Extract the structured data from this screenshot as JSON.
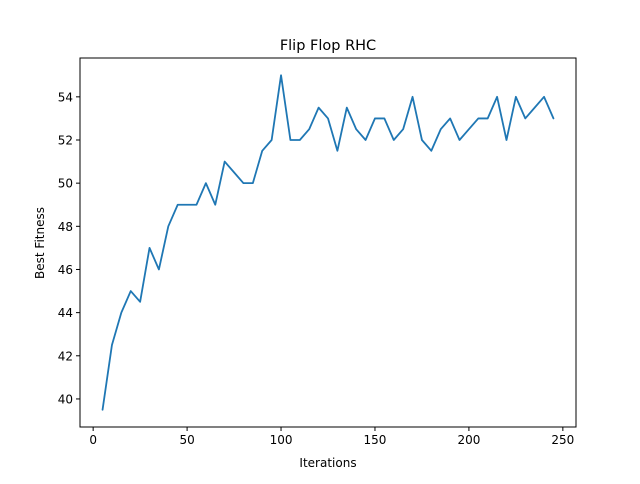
{
  "chart_data": {
    "type": "line",
    "title": "Flip Flop RHC",
    "xlabel": "Iterations",
    "ylabel": "Best Fitness",
    "xlim": [
      -7,
      257
    ],
    "ylim": [
      38.7,
      55.8
    ],
    "xticks": [
      0,
      50,
      100,
      150,
      200,
      250
    ],
    "yticks": [
      40,
      42,
      44,
      46,
      48,
      50,
      52,
      54
    ],
    "grid": false,
    "line_color": "#1f77b4",
    "series": [
      {
        "x": [
          5,
          10,
          15,
          20,
          25,
          30,
          35,
          40,
          45,
          50,
          55,
          60,
          65,
          70,
          75,
          80,
          85,
          90,
          95,
          100,
          105,
          110,
          115,
          120,
          125,
          130,
          135,
          140,
          145,
          150,
          155,
          160,
          165,
          170,
          175,
          180,
          185,
          190,
          195,
          200,
          205,
          210,
          215,
          220,
          225,
          230,
          235,
          240,
          245
        ],
        "values": [
          39.5,
          42.5,
          44,
          45,
          44.5,
          47,
          46,
          48,
          49,
          49,
          49,
          50,
          49,
          51,
          50.5,
          50,
          50,
          51.5,
          52,
          55,
          52,
          52,
          52.5,
          53.5,
          53,
          51.5,
          53.5,
          52.5,
          52,
          53,
          53,
          52,
          52.5,
          54,
          52,
          51.5,
          52.5,
          53,
          52,
          52.5,
          53,
          53,
          54,
          52,
          54,
          53,
          53.5,
          54,
          53
        ]
      }
    ]
  }
}
